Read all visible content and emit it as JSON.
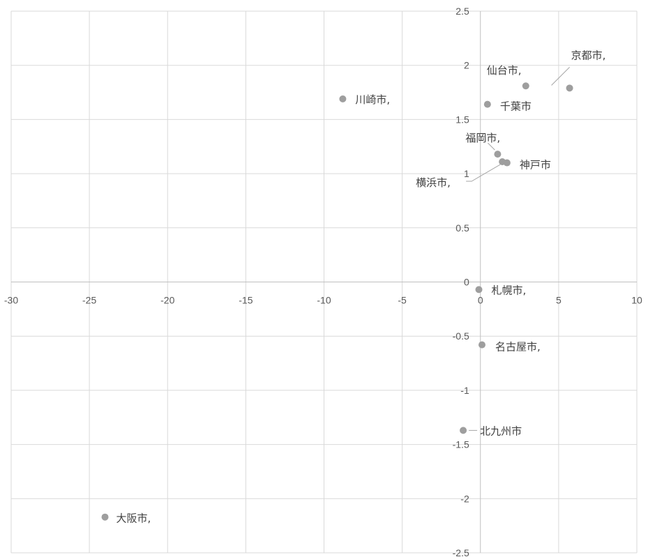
{
  "chart_data": {
    "type": "scatter",
    "title": "",
    "xlabel": "",
    "ylabel": "",
    "xlim": [
      -30,
      10
    ],
    "ylim": [
      -2.5,
      2.5
    ],
    "x_ticks": [
      -30,
      -25,
      -20,
      -15,
      -10,
      -5,
      0,
      5,
      10
    ],
    "y_ticks": [
      -2.5,
      -2,
      -1.5,
      -1,
      -0.5,
      0,
      0.5,
      1,
      1.5,
      2,
      2.5
    ],
    "x_tick_labels": [
      "-30",
      "-25",
      "-20",
      "-15",
      "-10",
      "-5",
      "0",
      "5",
      "10"
    ],
    "y_tick_labels": [
      "-2.5",
      "-2",
      "-1.5",
      "-1",
      "-0.5",
      "0",
      "0.5",
      "1",
      "1.5",
      "2",
      "2.5"
    ],
    "grid": true,
    "marker_color": "#9e9e9e",
    "points": [
      {
        "label": "川崎市,",
        "x": -8.8,
        "y": 1.69
      },
      {
        "label": "仙台市,",
        "x": 2.9,
        "y": 1.81
      },
      {
        "label": "京都市,",
        "x": 5.7,
        "y": 1.79
      },
      {
        "label": "千葉市",
        "x": 0.45,
        "y": 1.64
      },
      {
        "label": "福岡市,",
        "x": 1.1,
        "y": 1.18
      },
      {
        "label": "神戸市",
        "x": 1.7,
        "y": 1.1
      },
      {
        "label": "横浜市,",
        "x": 1.4,
        "y": 1.11
      },
      {
        "label": "札幌市,",
        "x": -0.1,
        "y": -0.07
      },
      {
        "label": "名古屋市,",
        "x": 0.1,
        "y": -0.58
      },
      {
        "label": "北九州市",
        "x": -1.1,
        "y": -1.37
      },
      {
        "label": "大阪市,",
        "x": -24.0,
        "y": -2.17
      }
    ]
  }
}
